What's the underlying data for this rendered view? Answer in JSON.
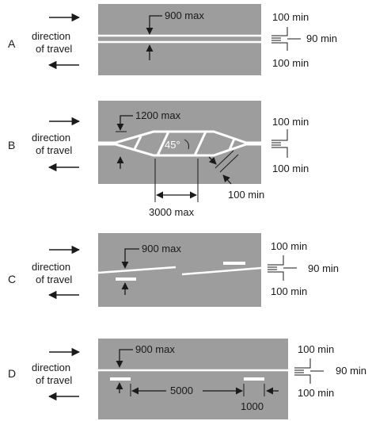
{
  "panels": [
    {
      "letter": "A",
      "direction": [
        "direction",
        "of travel"
      ],
      "max_label": "900 max",
      "min_top": "100 min",
      "min_mid": "90 min",
      "min_bottom": "100 min"
    },
    {
      "letter": "B",
      "direction": [
        "direction",
        "of travel"
      ],
      "max_label": "1200 max",
      "angle_label": "45°",
      "length_label": "3000 max",
      "hatch_width_label": "100 min",
      "min_top": "100 min",
      "min_bottom": "100 min"
    },
    {
      "letter": "C",
      "direction": [
        "direction",
        "of travel"
      ],
      "max_label": "900 max",
      "min_top": "100 min",
      "min_mid": "90 min",
      "min_bottom": "100 min"
    },
    {
      "letter": "D",
      "direction": [
        "direction",
        "of travel"
      ],
      "max_label": "900 max",
      "spacing_label": "5000",
      "segment_label": "1000",
      "min_top": "100 min",
      "min_mid": "90 min",
      "min_bottom": "100 min"
    }
  ],
  "colors": {
    "road": "#9d9d9d",
    "marking": "#ffffff",
    "ink": "#1a1a1a"
  }
}
